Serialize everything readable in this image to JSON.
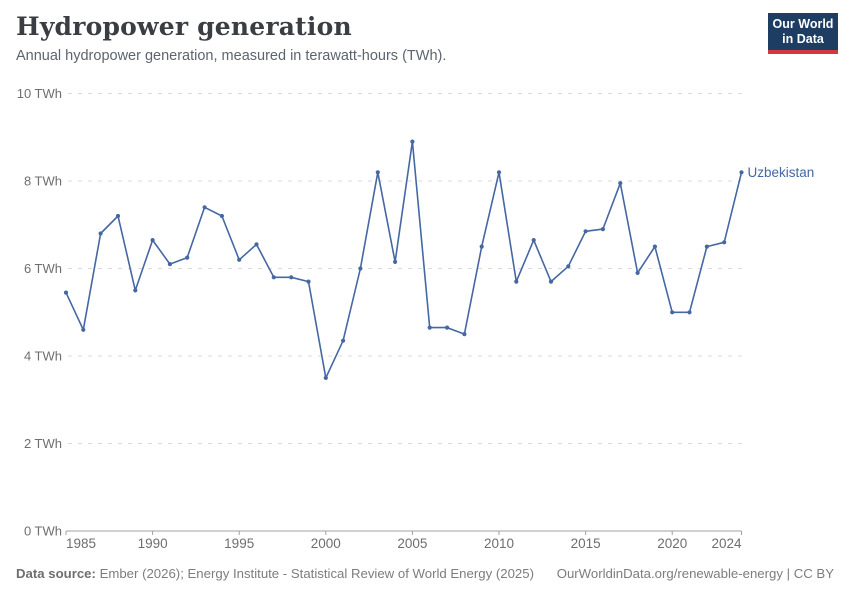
{
  "header": {
    "title": "Hydropower generation",
    "subtitle": "Annual hydropower generation, measured in terawatt-hours (TWh)."
  },
  "logo": {
    "line1": "Our World",
    "line2": "in Data",
    "bg_color": "#1d3d63",
    "bar_color": "#d0393e"
  },
  "chart_data": {
    "type": "line",
    "title": "Hydropower generation",
    "unit": "TWh",
    "xlim": [
      1985,
      2024
    ],
    "ylim": [
      0,
      10
    ],
    "grid": "horizontal-dashed",
    "legend_position": "end-of-line",
    "x_ticks": [
      1985,
      1990,
      1995,
      2000,
      2005,
      2010,
      2015,
      2020,
      2024
    ],
    "x_tick_labels": [
      "1985",
      "1990",
      "1995",
      "2000",
      "2005",
      "2010",
      "2015",
      "2020",
      "2024"
    ],
    "y_ticks": [
      0,
      2,
      4,
      6,
      8,
      10
    ],
    "y_tick_labels": [
      "0 TWh",
      "2 TWh",
      "4 TWh",
      "6 TWh",
      "8 TWh",
      "10 TWh"
    ],
    "series": [
      {
        "name": "Uzbekistan",
        "color": "#4567a3",
        "x": [
          1985,
          1986,
          1987,
          1988,
          1989,
          1990,
          1991,
          1992,
          1993,
          1994,
          1995,
          1996,
          1997,
          1998,
          1999,
          2000,
          2001,
          2002,
          2003,
          2004,
          2005,
          2006,
          2007,
          2008,
          2009,
          2010,
          2011,
          2012,
          2013,
          2014,
          2015,
          2016,
          2017,
          2018,
          2019,
          2020,
          2021,
          2022,
          2023,
          2024
        ],
        "values": [
          5.45,
          4.6,
          6.8,
          7.2,
          5.5,
          6.65,
          6.1,
          6.25,
          7.4,
          7.2,
          6.2,
          6.55,
          5.8,
          5.8,
          5.7,
          3.5,
          4.35,
          6.0,
          8.2,
          6.15,
          8.9,
          4.65,
          4.65,
          4.5,
          6.5,
          8.2,
          5.7,
          6.65,
          5.7,
          6.05,
          6.85,
          6.9,
          7.95,
          5.9,
          6.5,
          5.0,
          5.0,
          6.5,
          6.6,
          8.2
        ]
      }
    ],
    "colors": {
      "grid": "#d9d9d9",
      "axis": "#a0a0a0",
      "tick_label": "#6e6e6e"
    }
  },
  "footer": {
    "source_label": "Data source:",
    "source": "Ember (2026); Energy Institute - Statistical Review of World Energy (2025)",
    "right": "OurWorldinData.org/renewable-energy | CC BY"
  }
}
